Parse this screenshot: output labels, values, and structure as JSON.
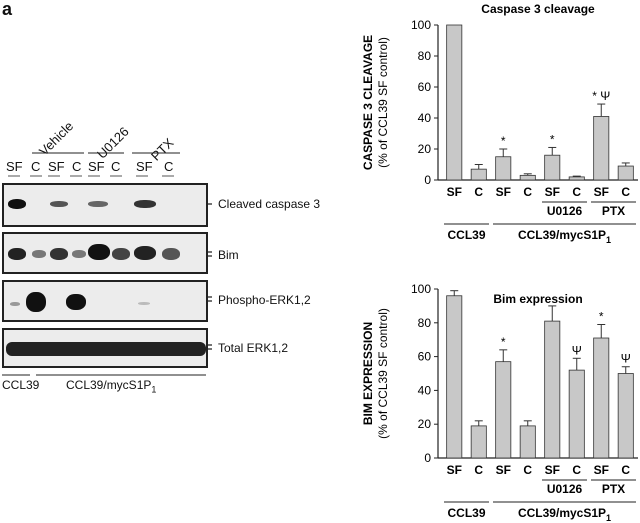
{
  "figure": {
    "panel_letter": "a",
    "blot": {
      "treatment_headers": [
        "Vehicle",
        "U0126",
        "PTX"
      ],
      "lane_labels": [
        "SF",
        "C",
        "SF",
        "C",
        "SF",
        "C",
        "SF",
        "C"
      ],
      "rows": [
        "Cleaved caspase 3",
        "Bim",
        "Phospho-ERK1,2",
        "Total ERK1,2"
      ],
      "cell_lines": [
        "CCL39",
        "CCL39/mycS1P",
        "1"
      ]
    }
  },
  "chart_data": [
    {
      "type": "bar",
      "title": "Caspase 3 cleavage",
      "ylabel": "CASPASE 3 CLEAVAGE",
      "ylabel2": "(% of CCL39 SF control)",
      "ylim": [
        0,
        100
      ],
      "yticks": [
        "0",
        "20",
        "40",
        "60",
        "80",
        "100"
      ],
      "categories": [
        "SF",
        "C",
        "SF",
        "C",
        "SF",
        "C",
        "SF",
        "C"
      ],
      "values": [
        100,
        7,
        15,
        3,
        16,
        2,
        41,
        9
      ],
      "errors": [
        0,
        3,
        5,
        1,
        5,
        0.5,
        8,
        2
      ],
      "annotations": [
        "",
        "",
        "*",
        "",
        "*",
        "",
        "* Ψ",
        ""
      ],
      "groups": [
        "U0126",
        "PTX"
      ],
      "cell_lines": [
        "CCL39",
        "CCL39/mycS1P",
        "1"
      ],
      "bar_color": "#c8c8c8"
    },
    {
      "type": "bar",
      "title": "Bim expression",
      "ylabel": "BIM EXPRESSION",
      "ylabel2": "(% of CCL39 SF control)",
      "ylim": [
        0,
        100
      ],
      "yticks": [
        "0",
        "20",
        "40",
        "60",
        "80",
        "100"
      ],
      "categories": [
        "SF",
        "C",
        "SF",
        "C",
        "SF",
        "C",
        "SF",
        "C"
      ],
      "values": [
        96,
        19,
        57,
        19,
        81,
        52,
        71,
        50
      ],
      "errors": [
        3,
        3,
        7,
        3,
        9,
        7,
        8,
        4
      ],
      "annotations": [
        "",
        "",
        "*",
        "",
        "",
        "Ψ",
        "*",
        "Ψ"
      ],
      "groups": [
        "U0126",
        "PTX"
      ],
      "cell_lines": [
        "CCL39",
        "CCL39/mycS1P",
        "1"
      ],
      "bar_color": "#c8c8c8"
    }
  ]
}
